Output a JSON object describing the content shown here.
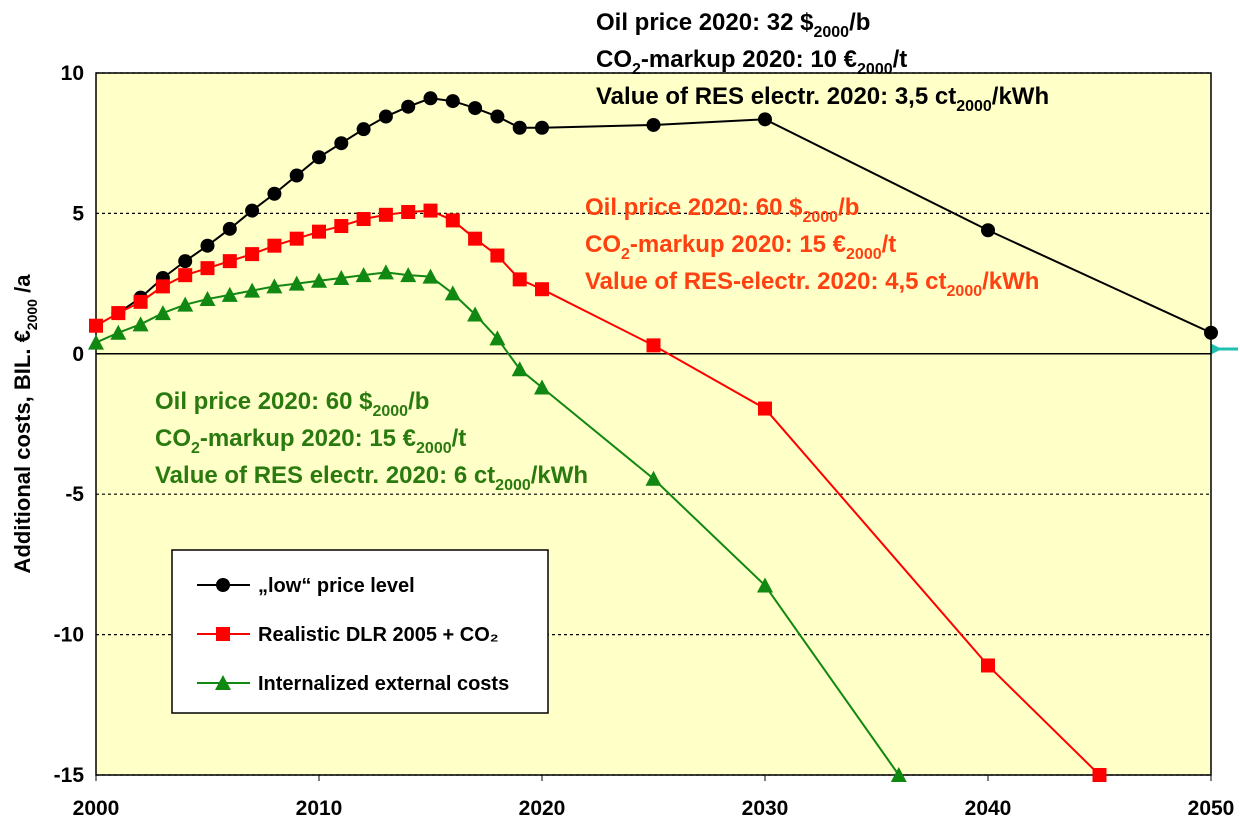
{
  "chart_data": {
    "type": "line",
    "ylabel": [
      "Additional costs, BIL. €",
      "2000",
      " /a"
    ],
    "xlim": [
      2000,
      2050
    ],
    "xticks": [
      2000,
      2010,
      2020,
      2030,
      2040,
      2050
    ],
    "ylim": [
      -15,
      10
    ],
    "yticks": [
      -15,
      -10,
      -5,
      0,
      5,
      10
    ],
    "grid": true,
    "plot_color": "#ffffc8",
    "series": [
      {
        "name": "„low“ price level",
        "color": "#000000",
        "marker": "circle",
        "x": [
          2001,
          2002,
          2003,
          2004,
          2005,
          2006,
          2007,
          2008,
          2009,
          2010,
          2011,
          2012,
          2013,
          2014,
          2015,
          2016,
          2017,
          2018,
          2019,
          2020,
          2025,
          2030,
          2040,
          2050
        ],
        "values": [
          1.45,
          2.0,
          2.7,
          3.3,
          3.85,
          4.45,
          5.1,
          5.7,
          6.35,
          7.0,
          7.5,
          8.0,
          8.45,
          8.8,
          9.1,
          9.0,
          8.75,
          8.45,
          8.05,
          8.05,
          8.15,
          8.35,
          4.4,
          0.75
        ]
      },
      {
        "name": "Realistic DLR 2005 + CO₂",
        "color": "#ff0000",
        "marker": "square",
        "x": [
          2000,
          2001,
          2002,
          2003,
          2004,
          2005,
          2006,
          2007,
          2008,
          2009,
          2010,
          2011,
          2012,
          2013,
          2014,
          2015,
          2016,
          2017,
          2018,
          2019,
          2020,
          2025,
          2030,
          2040,
          2045
        ],
        "values": [
          1.0,
          1.45,
          1.85,
          2.4,
          2.8,
          3.05,
          3.3,
          3.55,
          3.85,
          4.1,
          4.35,
          4.55,
          4.8,
          4.95,
          5.05,
          5.1,
          4.75,
          4.1,
          3.5,
          2.65,
          2.3,
          0.3,
          -1.95,
          -11.1,
          -15
        ]
      },
      {
        "name": "Internalized external costs",
        "color": "#118811",
        "marker": "triangle",
        "x": [
          2000,
          2001,
          2002,
          2003,
          2004,
          2005,
          2006,
          2007,
          2008,
          2009,
          2010,
          2011,
          2012,
          2013,
          2014,
          2015,
          2016,
          2017,
          2018,
          2019,
          2020,
          2025,
          2030,
          2036
        ],
        "values": [
          0.4,
          0.75,
          1.05,
          1.45,
          1.75,
          1.95,
          2.1,
          2.25,
          2.4,
          2.5,
          2.6,
          2.7,
          2.8,
          2.9,
          2.8,
          2.75,
          2.15,
          1.4,
          0.55,
          -0.55,
          -1.2,
          -4.45,
          -8.25,
          -15
        ]
      }
    ],
    "annotations": [
      {
        "color": "#000000",
        "lines": [
          [
            "Oil price 2020: 32 $",
            "2000",
            "/b"
          ],
          [
            "CO",
            "2",
            "-markup 2020: 10 €",
            "2000",
            "/t"
          ],
          [
            "Value of RES electr. 2020: 3,5 ct",
            "2000",
            "/kWh"
          ]
        ]
      },
      {
        "color": "#ff4010",
        "lines": [
          [
            "Oil price 2020: 60 $",
            "2000",
            "/b"
          ],
          [
            "CO",
            "2",
            "-markup 2020: 15 €",
            "2000",
            "/t"
          ],
          [
            "Value of RES-electr. 2020: 4,5 ct",
            "2000",
            "/kWh"
          ]
        ]
      },
      {
        "color": "#2a7a10",
        "lines": [
          [
            "Oil price 2020: 60 $",
            "2000",
            "/b"
          ],
          [
            "CO",
            "2",
            "-markup 2020: 15 €",
            "2000",
            "/t"
          ],
          [
            "Value of RES electr. 2020: 6 ct",
            "2000",
            "/kWh"
          ]
        ]
      }
    ]
  }
}
